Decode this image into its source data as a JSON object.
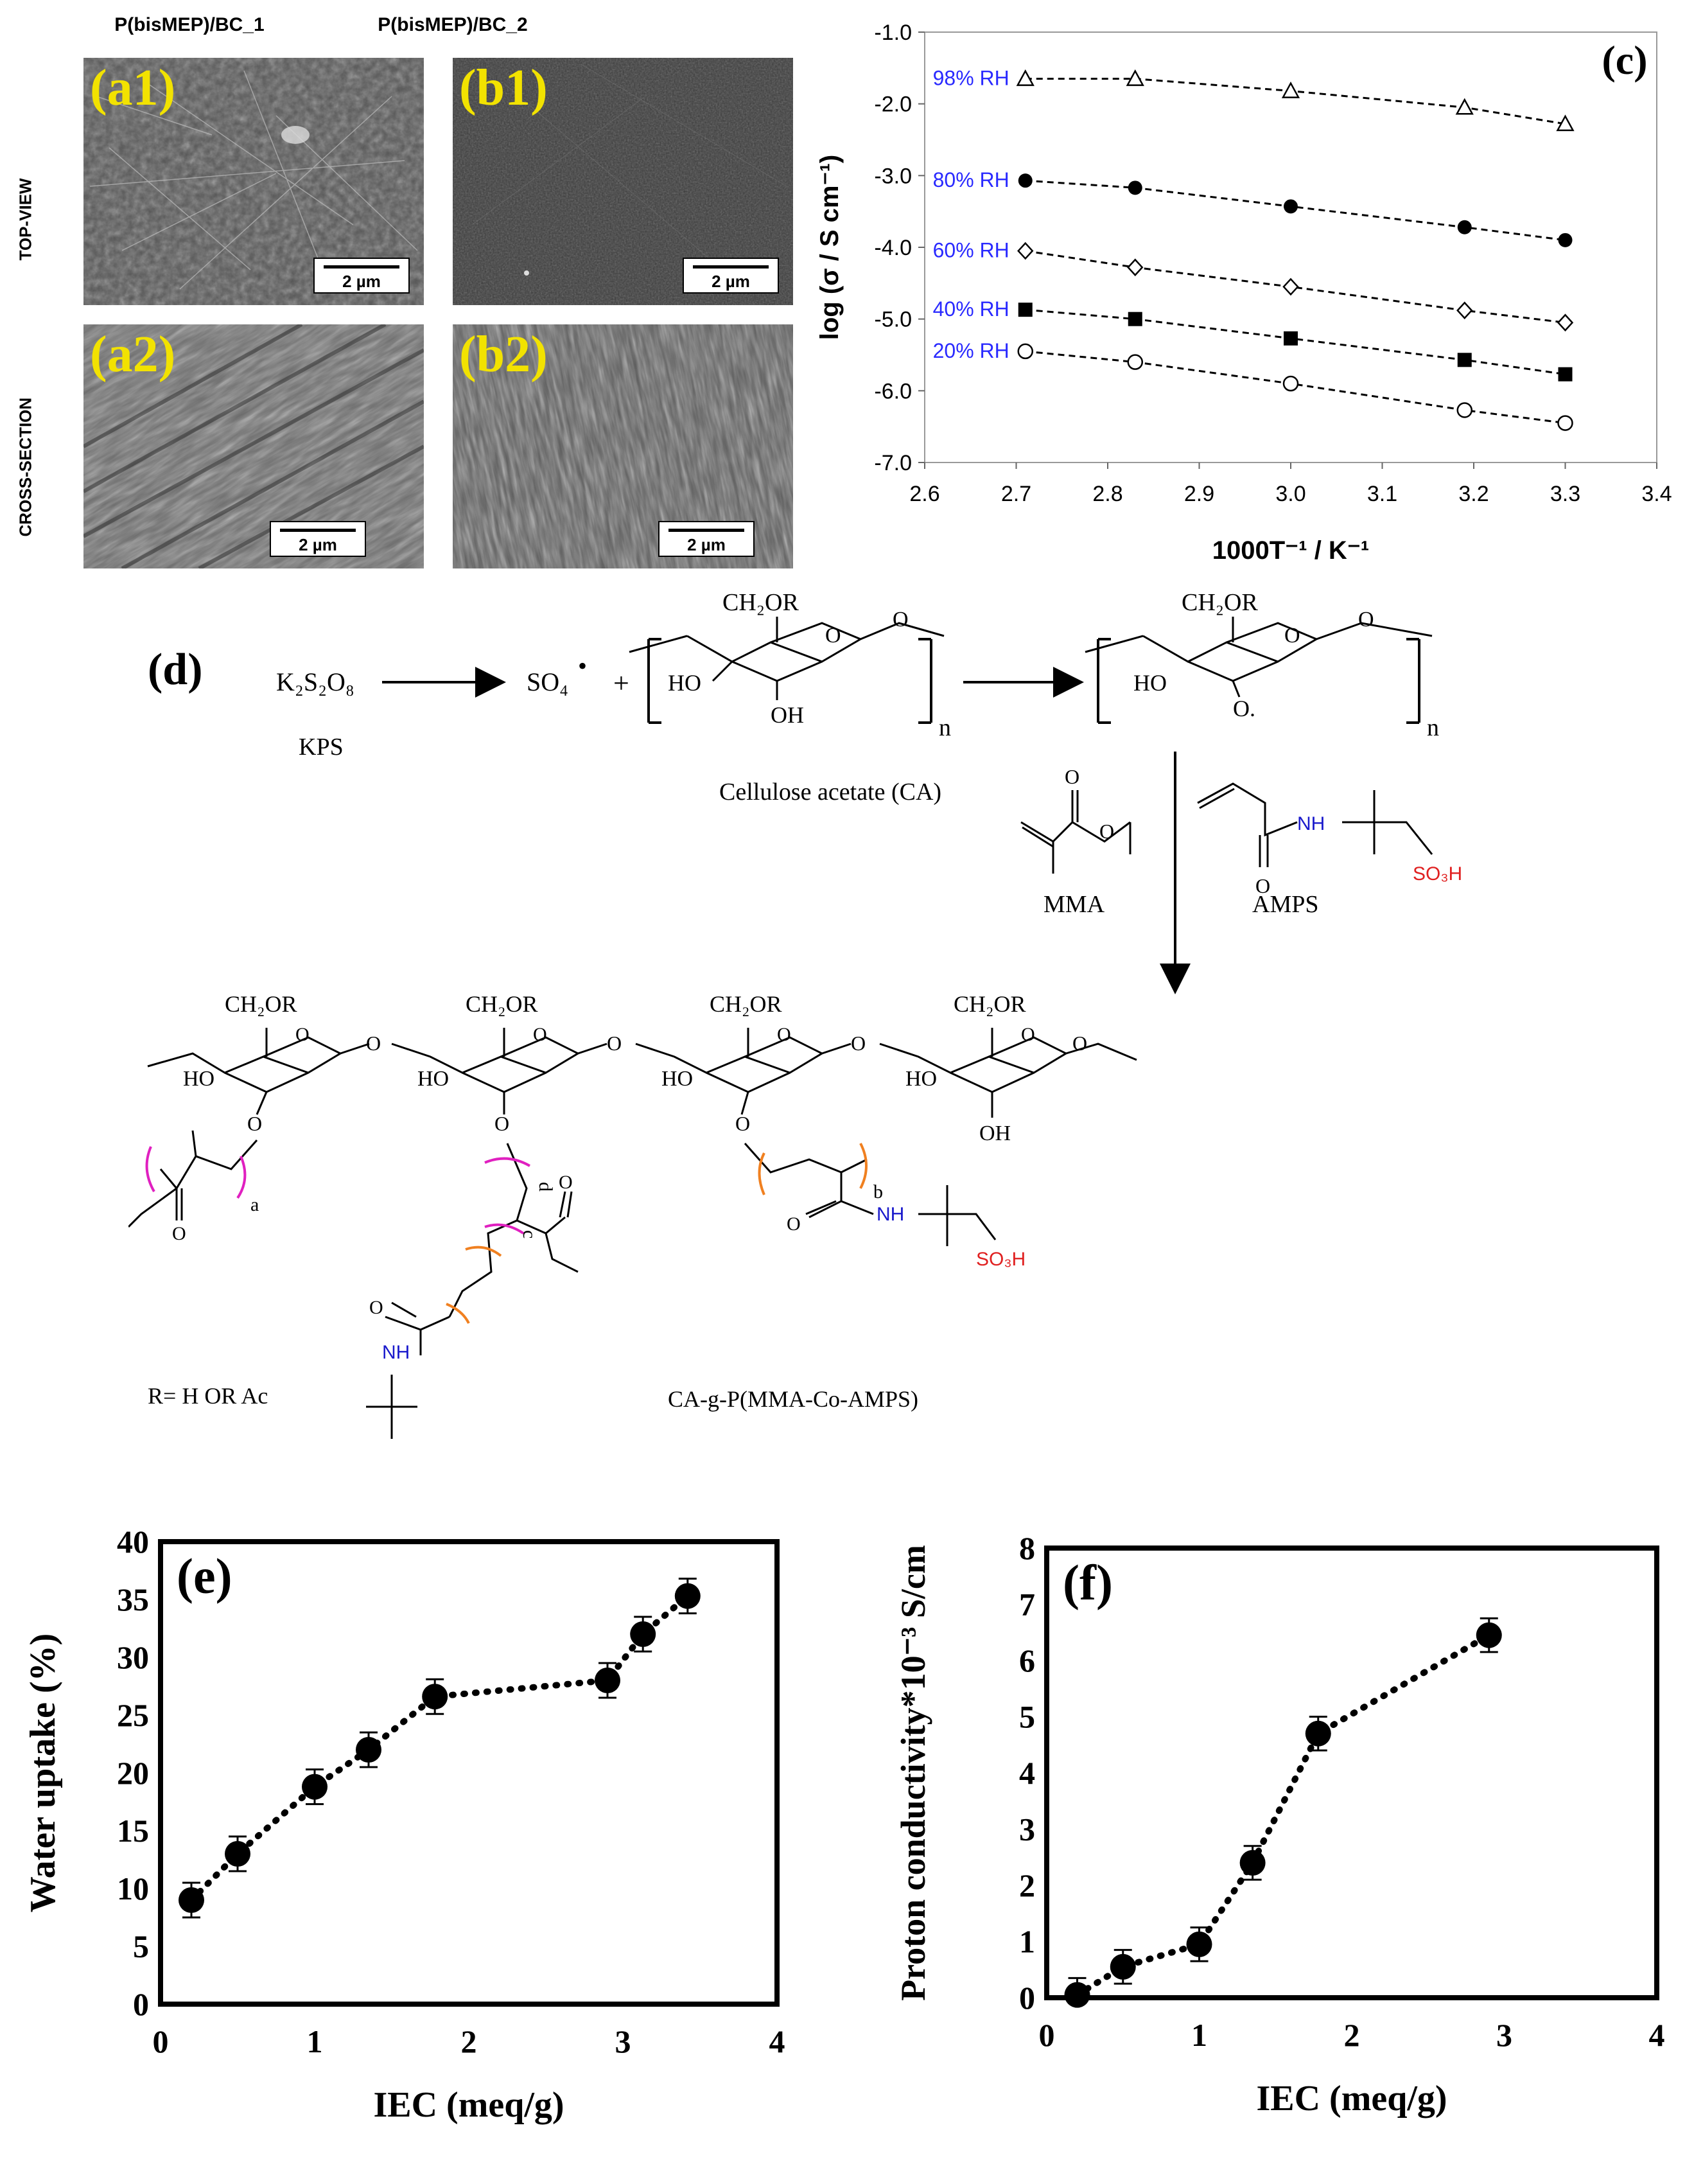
{
  "sem": {
    "columns": [
      "P(bisMEP)/BC_1",
      "P(bisMEP)/BC_2"
    ],
    "rows": [
      "TOP-VIEW",
      "CROSS-SECTION"
    ],
    "panels": [
      {
        "tag": "(a1)",
        "scale": "2 µm",
        "texture": "fibrous"
      },
      {
        "tag": "(b1)",
        "scale": "2 µm",
        "texture": "smooth"
      },
      {
        "tag": "(a2)",
        "scale": "2 µm",
        "texture": "layered"
      },
      {
        "tag": "(b2)",
        "scale": "2 µm",
        "texture": "ridged"
      }
    ]
  },
  "chart_data": [
    {
      "panel": "(c)",
      "type": "scatter",
      "xlabel": "1000T⁻¹ / K⁻¹",
      "ylabel": "log (σ / S cm⁻¹)",
      "xlim": [
        2.6,
        3.4
      ],
      "ylim": [
        -7.0,
        -1.0
      ],
      "xticks": [
        "2.6",
        "2.7",
        "2.8",
        "2.9",
        "3.0",
        "3.1",
        "3.2",
        "3.3",
        "3.4"
      ],
      "yticks": [
        "-1.0",
        "-2.0",
        "-3.0",
        "-4.0",
        "-5.0",
        "-6.0",
        "-7.0"
      ],
      "x": [
        2.71,
        2.83,
        3.0,
        3.19,
        3.3
      ],
      "series": [
        {
          "name": "98% RH",
          "marker": "triangle-open",
          "values": [
            -1.65,
            -1.65,
            -1.82,
            -2.05,
            -2.28
          ]
        },
        {
          "name": "80% RH",
          "marker": "circle-filled",
          "values": [
            -3.07,
            -3.17,
            -3.43,
            -3.72,
            -3.9
          ]
        },
        {
          "name": "60% RH",
          "marker": "diamond-open",
          "values": [
            -4.05,
            -4.28,
            -4.55,
            -4.88,
            -5.05
          ]
        },
        {
          "name": "40% RH",
          "marker": "square-filled",
          "values": [
            -4.87,
            -5.0,
            -5.27,
            -5.57,
            -5.77
          ]
        },
        {
          "name": "20% RH",
          "marker": "circle-open",
          "values": [
            -5.45,
            -5.6,
            -5.9,
            -6.27,
            -6.45
          ]
        }
      ],
      "label_color": "#2a2aff",
      "line_style": "dashed"
    },
    {
      "panel": "(e)",
      "type": "line",
      "xlabel": "IEC (meq/g)",
      "ylabel": "Water uptake (%)",
      "xlim": [
        0,
        4
      ],
      "ylim": [
        0,
        40
      ],
      "xticks": [
        "0",
        "1",
        "2",
        "3",
        "4"
      ],
      "yticks": [
        "0",
        "5",
        "10",
        "15",
        "20",
        "25",
        "30",
        "35",
        "40"
      ],
      "x": [
        0.2,
        0.5,
        1.0,
        1.35,
        1.78,
        2.9,
        3.13,
        3.42
      ],
      "values": [
        9.0,
        13.0,
        18.8,
        22.0,
        26.6,
        28.0,
        32.0,
        35.3
      ],
      "error": [
        1.5,
        1.5,
        1.5,
        1.5,
        1.5,
        1.5,
        1.5,
        1.5
      ],
      "line_style": "dotted"
    },
    {
      "panel": "(f)",
      "type": "line",
      "xlabel": "IEC (meq/g)",
      "ylabel": "Proton conductivity*10⁻³ S/cm",
      "xlim": [
        0,
        4
      ],
      "ylim": [
        0,
        8
      ],
      "xticks": [
        "0",
        "1",
        "2",
        "3",
        "4"
      ],
      "yticks": [
        "0",
        "1",
        "2",
        "3",
        "4",
        "5",
        "6",
        "7",
        "8"
      ],
      "x": [
        0.2,
        0.5,
        1.0,
        1.35,
        1.78,
        2.9
      ],
      "values": [
        0.05,
        0.55,
        0.95,
        2.4,
        4.7,
        6.45
      ],
      "error": [
        0.3,
        0.3,
        0.3,
        0.3,
        0.3,
        0.3
      ],
      "line_style": "dotted"
    }
  ],
  "scheme": {
    "panel_label": "(d)",
    "initiator": "K₂S₂O₈",
    "initiator_name": "KPS",
    "radical": "SO₄",
    "radical_dot": "•",
    "plus": "+",
    "ch2or": "CH₂OR",
    "ho": "HO",
    "oh": "OH",
    "o": "O",
    "o_radical": "O.",
    "n": "n",
    "cellulose_name": "Cellulose acetate (CA)",
    "mma": "MMA",
    "amps": "AMPS",
    "nh": "NH",
    "so3h": "SO₃H",
    "r_def": "R= H OR Ac",
    "product": "CA-g-P(MMA-Co-AMPS)",
    "sub_a": "a",
    "sub_b": "b",
    "sub_c": "c",
    "sub_d": "d",
    "colors": {
      "nh": "#1a1acc",
      "so3h": "#e02020",
      "bracket_pink": "#e020c0",
      "bracket_orange": "#f08020"
    }
  }
}
